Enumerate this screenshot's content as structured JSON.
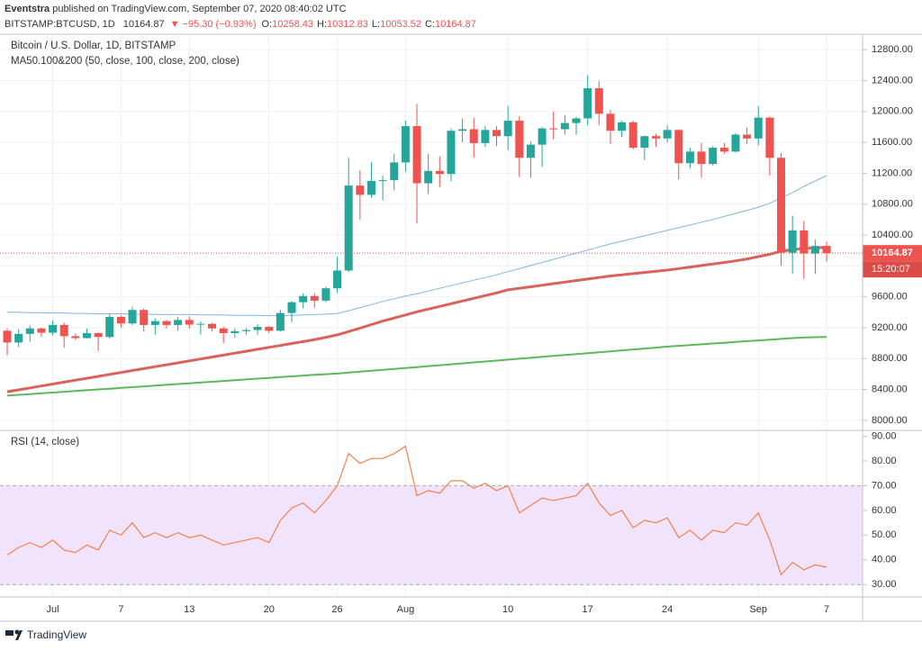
{
  "header": {
    "author": "Eventstra",
    "author_rest": "published on TradingView.com, September 07, 2020 08:40:02 UTC",
    "symbol": "BITSTAMP:BTCUSD, 1D",
    "last": "10164.87",
    "change": "▼ −95.30 (−0.93%)",
    "ohlc": [
      {
        "label": "O:",
        "value": "10258.43"
      },
      {
        "label": "H:",
        "value": "10312.83"
      },
      {
        "label": "L:",
        "value": "10053.52"
      },
      {
        "label": "C:",
        "value": "10164.87"
      }
    ]
  },
  "footer": {
    "brand": "TradingView"
  },
  "chart_data": [
    {
      "type": "candlestick",
      "title": "Bitcoin / U.S. Dollar, 1D, BITSTAMP",
      "subtitle": "MA50.100&200 (50, close, 100, close, 200, close)",
      "categories": [
        null,
        null,
        null,
        null,
        "Jul",
        null,
        null,
        null,
        null,
        null,
        "7",
        null,
        null,
        null,
        null,
        null,
        "13",
        null,
        null,
        null,
        null,
        null,
        null,
        "20",
        null,
        null,
        null,
        null,
        null,
        "26",
        null,
        null,
        null,
        null,
        null,
        "Aug",
        null,
        null,
        null,
        null,
        null,
        null,
        null,
        null,
        "10",
        null,
        null,
        null,
        null,
        null,
        null,
        "17",
        null,
        null,
        null,
        null,
        null,
        null,
        "24",
        null,
        null,
        null,
        null,
        null,
        null,
        null,
        "Sep",
        null,
        null,
        null,
        null,
        null,
        "7"
      ],
      "open": [
        9160,
        9008,
        9120,
        9190,
        9135,
        9235,
        9090,
        9065,
        9130,
        9080,
        9340,
        9255,
        9430,
        9235,
        9285,
        9235,
        9300,
        9240,
        9250,
        9190,
        9130,
        9155,
        9170,
        9210,
        9160,
        9390,
        9530,
        9610,
        9550,
        9710,
        9940,
        11040,
        10920,
        11100,
        11110,
        11340,
        11810,
        11070,
        11230,
        11190,
        11750,
        11770,
        11590,
        11760,
        11680,
        11880,
        11400,
        11570,
        11780,
        11770,
        11850,
        11910,
        12300,
        11970,
        11750,
        11860,
        11530,
        11680,
        11650,
        11760,
        11330,
        11480,
        11320,
        11530,
        11480,
        11700,
        11650,
        11920,
        11400,
        10170,
        10460,
        10160,
        10258.43
      ],
      "high": [
        9190,
        9180,
        9230,
        9200,
        9295,
        9265,
        9125,
        9190,
        9140,
        9375,
        9360,
        9470,
        9450,
        9320,
        9300,
        9340,
        9345,
        9280,
        9265,
        9210,
        9190,
        9195,
        9245,
        9220,
        9430,
        9545,
        9645,
        9650,
        9730,
        10120,
        11400,
        11240,
        11340,
        11170,
        11450,
        11880,
        12100,
        11450,
        11420,
        11780,
        11910,
        11920,
        11810,
        11810,
        12070,
        11940,
        11610,
        11800,
        12000,
        11950,
        11930,
        12470,
        12390,
        12020,
        11880,
        11880,
        11690,
        11710,
        11820,
        11770,
        11530,
        11590,
        11550,
        11590,
        11720,
        11790,
        12070,
        11930,
        11460,
        10650,
        10580,
        10340,
        10312.83
      ],
      "low": [
        8840,
        8950,
        9020,
        9080,
        9100,
        8940,
        9040,
        9060,
        8900,
        9060,
        9200,
        9235,
        9150,
        9110,
        9190,
        9160,
        9190,
        9110,
        9150,
        9000,
        9070,
        9110,
        9110,
        9130,
        9150,
        9270,
        9450,
        9460,
        9530,
        9650,
        9920,
        10600,
        10880,
        10850,
        10980,
        11220,
        10550,
        10930,
        11020,
        11100,
        11600,
        11400,
        11540,
        11550,
        11500,
        11150,
        11140,
        11280,
        11640,
        11700,
        11700,
        11820,
        11820,
        11580,
        11670,
        11510,
        11370,
        11540,
        11600,
        11120,
        11260,
        11140,
        11300,
        11450,
        11470,
        11580,
        11560,
        11170,
        10000,
        9900,
        9830,
        9900,
        10053.52
      ],
      "close": [
        9008,
        9120,
        9190,
        9135,
        9235,
        9090,
        9065,
        9130,
        9080,
        9340,
        9255,
        9430,
        9235,
        9285,
        9235,
        9300,
        9240,
        9250,
        9190,
        9130,
        9155,
        9170,
        9210,
        9160,
        9390,
        9530,
        9610,
        9550,
        9710,
        9940,
        11040,
        10920,
        11100,
        11110,
        11340,
        11810,
        11070,
        11230,
        11190,
        11750,
        11770,
        11590,
        11760,
        11680,
        11880,
        11400,
        11570,
        11780,
        11770,
        11850,
        11910,
        12300,
        11970,
        11750,
        11860,
        11530,
        11680,
        11650,
        11760,
        11330,
        11480,
        11320,
        11530,
        11480,
        11700,
        11650,
        11920,
        11400,
        10170,
        10460,
        10160,
        10258.43,
        10164.87
      ],
      "up_color": "#26a69a",
      "down_color": "#ef5350",
      "series": [
        {
          "color": "#7fb6e3",
          "width": 1,
          "values": [
            9400,
            9400,
            9395,
            9395,
            9390,
            9390,
            9385,
            9385,
            9380,
            9380,
            9380,
            9375,
            9375,
            9370,
            9370,
            9370,
            9370,
            9365,
            9365,
            9365,
            9360,
            9360,
            9360,
            9355,
            9355,
            9360,
            9365,
            9370,
            9375,
            9385,
            9420,
            9460,
            9500,
            9540,
            9575,
            9610,
            9640,
            9675,
            9710,
            9745,
            9780,
            9815,
            9850,
            9885,
            9925,
            9965,
            10005,
            10045,
            10085,
            10125,
            10165,
            10205,
            10245,
            10285,
            10320,
            10355,
            10390,
            10425,
            10460,
            10495,
            10530,
            10565,
            10600,
            10640,
            10680,
            10720,
            10760,
            10810,
            10880,
            10950,
            11030,
            11100,
            11170
          ]
        },
        {
          "color": "#d9625c",
          "width": 3,
          "values": [
            8370,
            8395,
            8420,
            8445,
            8470,
            8495,
            8520,
            8545,
            8570,
            8595,
            8620,
            8645,
            8670,
            8695,
            8720,
            8745,
            8770,
            8795,
            8820,
            8845,
            8870,
            8895,
            8920,
            8945,
            8970,
            8995,
            9020,
            9045,
            9075,
            9107,
            9150,
            9195,
            9240,
            9285,
            9325,
            9365,
            9405,
            9440,
            9475,
            9510,
            9545,
            9580,
            9615,
            9650,
            9690,
            9710,
            9730,
            9750,
            9770,
            9790,
            9810,
            9830,
            9850,
            9870,
            9885,
            9900,
            9915,
            9930,
            9945,
            9965,
            9985,
            10005,
            10025,
            10045,
            10065,
            10090,
            10120,
            10150,
            10190,
            10210,
            10225,
            10235,
            10240
          ]
        },
        {
          "color": "#5cb85c",
          "width": 2,
          "values": [
            8320,
            8330,
            8340,
            8350,
            8360,
            8370,
            8380,
            8390,
            8400,
            8410,
            8420,
            8430,
            8440,
            8450,
            8460,
            8470,
            8480,
            8490,
            8500,
            8510,
            8520,
            8530,
            8540,
            8550,
            8560,
            8570,
            8580,
            8590,
            8598,
            8606,
            8618,
            8630,
            8642,
            8654,
            8666,
            8678,
            8690,
            8702,
            8714,
            8726,
            8738,
            8750,
            8762,
            8774,
            8786,
            8798,
            8810,
            8822,
            8834,
            8846,
            8858,
            8870,
            8882,
            8894,
            8906,
            8918,
            8930,
            8942,
            8955,
            8965,
            8975,
            8985,
            8995,
            9005,
            9015,
            9025,
            9035,
            9045,
            9055,
            9065,
            9072,
            9077,
            9080
          ]
        }
      ],
      "ylim": [
        7870,
        13000
      ],
      "yticks": [
        {
          "value": 8000,
          "label": "8000.00"
        },
        {
          "value": 8400,
          "label": "8400.00"
        },
        {
          "value": 8800,
          "label": "8800.00"
        },
        {
          "value": 9200,
          "label": "9200.00"
        },
        {
          "value": 9600,
          "label": "9600.00"
        },
        {
          "value": 10000,
          "label": "10000.00"
        },
        {
          "value": 10400,
          "label": "10400.00"
        },
        {
          "value": 10800,
          "label": "10800.00"
        },
        {
          "value": 11200,
          "label": "11200.00"
        },
        {
          "value": 11600,
          "label": "11600.00"
        },
        {
          "value": 12000,
          "label": "12000.00"
        },
        {
          "value": 12400,
          "label": "12400.00"
        },
        {
          "value": 12800,
          "label": "12800.00"
        }
      ],
      "grid": true,
      "countdown": "15:20:07"
    },
    {
      "type": "line",
      "title": "RSI (14, close)",
      "series": [
        {
          "color": "#f0824f",
          "values": [
            42,
            45,
            47,
            45,
            48,
            44,
            43,
            46,
            44,
            52,
            50,
            55,
            49,
            51,
            49,
            51,
            49,
            50,
            48,
            46,
            47,
            48,
            49,
            47,
            56,
            61,
            63,
            59,
            64,
            70,
            83,
            79,
            81,
            81,
            83,
            86,
            66,
            68,
            67,
            72,
            72,
            69,
            71,
            68,
            70,
            59,
            62,
            65,
            64,
            65,
            66,
            71,
            63,
            58,
            60,
            53,
            56,
            55,
            57,
            49,
            52,
            48,
            52,
            51,
            55,
            54,
            59,
            48,
            34,
            39,
            36,
            38,
            37
          ]
        }
      ],
      "ylim": [
        25,
        92
      ],
      "yticks": [
        {
          "value": 30,
          "label": "30.00"
        },
        {
          "value": 40,
          "label": "40.00"
        },
        {
          "value": 50,
          "label": "50.00"
        },
        {
          "value": 60,
          "label": "60.00"
        },
        {
          "value": 70,
          "label": "70.00"
        },
        {
          "value": 80,
          "label": "80.00"
        },
        {
          "value": 90,
          "label": "90.00"
        }
      ],
      "band": [
        30,
        70
      ],
      "band_color": "#f1e3fb"
    }
  ]
}
